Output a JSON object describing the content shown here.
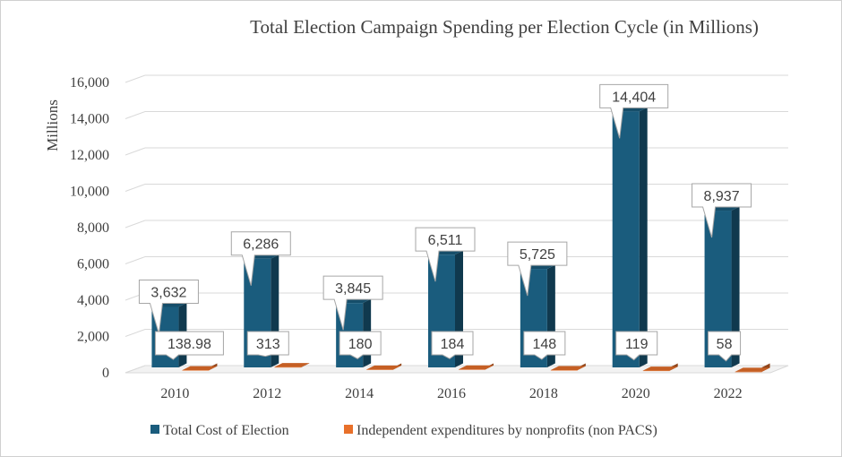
{
  "chart_data": {
    "type": "bar",
    "title": "Total Election Campaign Spending per Election Cycle (in Millions)",
    "xlabel": "",
    "ylabel": "Millions",
    "ylim": [
      0,
      16000
    ],
    "yticks": [
      "0",
      "2,000",
      "4,000",
      "6,000",
      "8,000",
      "10,000",
      "12,000",
      "14,000",
      "16,000"
    ],
    "ytick_values": [
      0,
      2000,
      4000,
      6000,
      8000,
      10000,
      12000,
      14000,
      16000
    ],
    "grid": true,
    "legend_position": "bottom",
    "categories": [
      "2010",
      "2012",
      "2014",
      "2016",
      "2018",
      "2020",
      "2022"
    ],
    "series": [
      {
        "name": "Total Cost of Election",
        "color": "#1a5c7d",
        "values": [
          3632,
          6286,
          3845,
          6511,
          5725,
          14404,
          8937
        ],
        "labels": [
          "3,632",
          "6,286",
          "3,845",
          "6,511",
          "5,725",
          "14,404",
          "8,937"
        ]
      },
      {
        "name": "Independent expenditures by nonprofits (non PACS)",
        "color": "#e8702a",
        "values": [
          138.98,
          313,
          180,
          184,
          148,
          119,
          58
        ],
        "labels": [
          "138.98",
          "313",
          "180",
          "184",
          "148",
          "119",
          "58"
        ]
      }
    ]
  }
}
